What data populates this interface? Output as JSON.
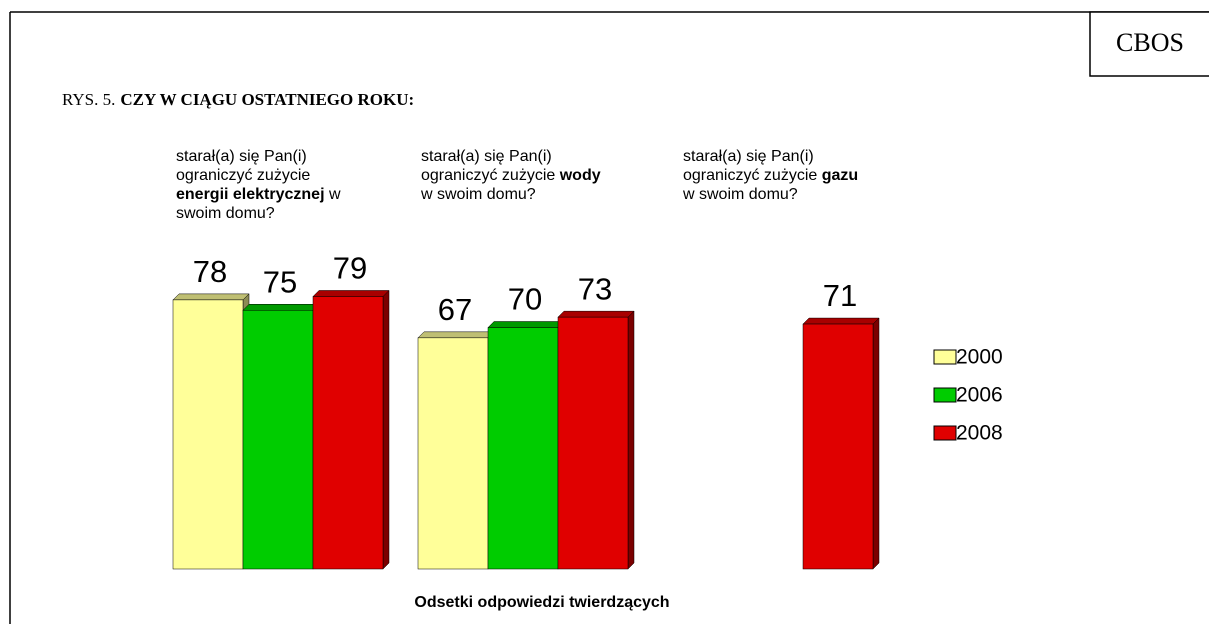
{
  "chart_data": {
    "type": "bar3d",
    "source": "CBOS",
    "figure_label": "RYS. 5.",
    "title": "CZY W CIĄGU OSTATNIEGO ROKU:",
    "x_label": "Odsetki odpowiedzi twierdzących",
    "categories": [
      {
        "parts": [
          {
            "text": "starał(a) się Pan(i) ograniczyć zużycie ",
            "bold": false
          },
          {
            "text": "energii elektrycznej",
            "bold": true
          },
          {
            "text": " w swoim domu?",
            "bold": false
          }
        ]
      },
      {
        "parts": [
          {
            "text": "starał(a) się Pan(i) ograniczyć zużycie ",
            "bold": false
          },
          {
            "text": "wody",
            "bold": true
          },
          {
            "text": " w swoim domu?",
            "bold": false
          }
        ]
      },
      {
        "parts": [
          {
            "text": "starał(a) się Pan(i) ograniczyć zużycie ",
            "bold": false
          },
          {
            "text": "gazu",
            "bold": true
          },
          {
            "text": " w swoim domu?",
            "bold": false
          }
        ]
      }
    ],
    "series": [
      {
        "name": "2000",
        "color": "#ffff99",
        "values": [
          78,
          67,
          null
        ]
      },
      {
        "name": "2006",
        "color": "#00cc00",
        "values": [
          75,
          70,
          null
        ]
      },
      {
        "name": "2008",
        "color": "#e00000",
        "values": [
          79,
          73,
          71
        ]
      }
    ],
    "ylim": [
      0,
      100
    ],
    "legend": "right"
  }
}
